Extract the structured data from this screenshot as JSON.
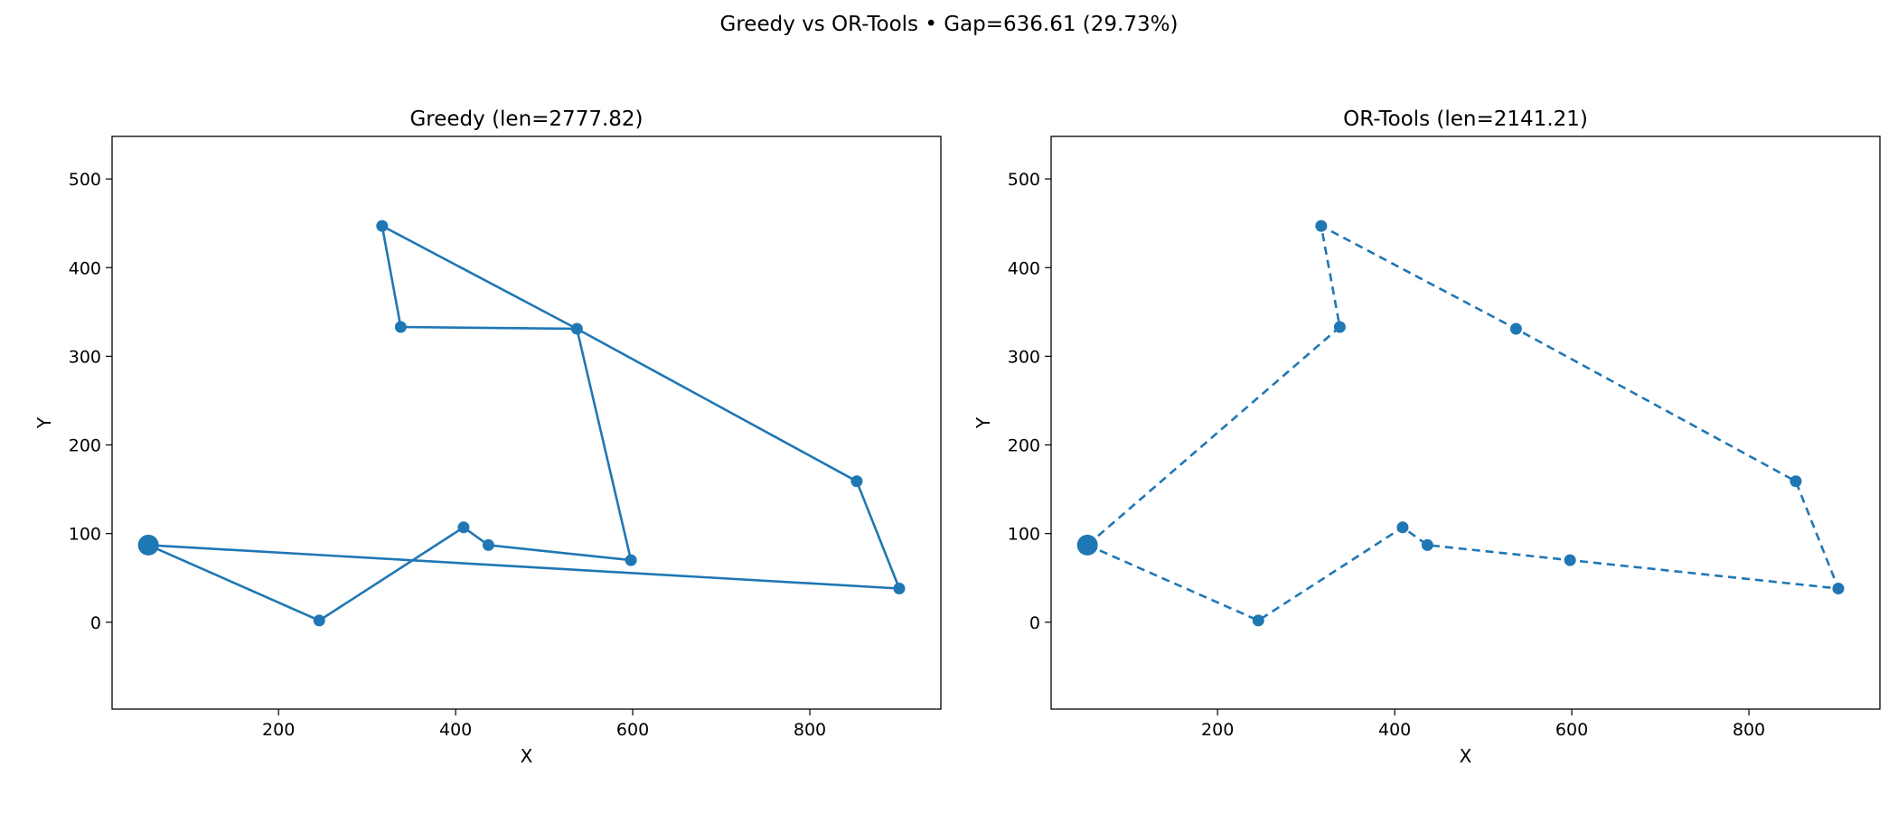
{
  "figure_title": "Greedy vs OR-Tools • Gap=636.61 (29.73%)",
  "colors": {
    "series": "#1f77b4",
    "axis": "#000000",
    "background": "#ffffff"
  },
  "chart_data": [
    {
      "type": "line",
      "title": "Greedy (len=2777.82)",
      "xlabel": "X",
      "ylabel": "Y",
      "xlim": [
        12,
        948
      ],
      "ylim": [
        -98,
        548
      ],
      "xticks": [
        200,
        400,
        600,
        800
      ],
      "yticks": [
        0,
        100,
        200,
        300,
        400,
        500
      ],
      "grid": false,
      "line_style": "solid",
      "depot": {
        "x": 53,
        "y": 87
      },
      "series": [
        {
          "x": [
            53,
            246,
            409,
            437,
            598,
            537,
            338,
            317,
            537,
            853,
            901,
            53
          ],
          "y": [
            87,
            2,
            107,
            87,
            70,
            331,
            333,
            447,
            331,
            159,
            38,
            87
          ]
        }
      ]
    },
    {
      "type": "line",
      "title": "OR-Tools (len=2141.21)",
      "xlabel": "X",
      "ylabel": "Y",
      "xlim": [
        12,
        948
      ],
      "ylim": [
        -98,
        548
      ],
      "xticks": [
        200,
        400,
        600,
        800
      ],
      "yticks": [
        0,
        100,
        200,
        300,
        400,
        500
      ],
      "grid": false,
      "line_style": "dashed",
      "depot": {
        "x": 53,
        "y": 87
      },
      "series": [
        {
          "x": [
            53,
            246,
            409,
            437,
            598,
            901,
            853,
            537,
            317,
            338,
            53
          ],
          "y": [
            87,
            2,
            107,
            87,
            70,
            38,
            159,
            331,
            447,
            333,
            87
          ]
        }
      ]
    }
  ]
}
